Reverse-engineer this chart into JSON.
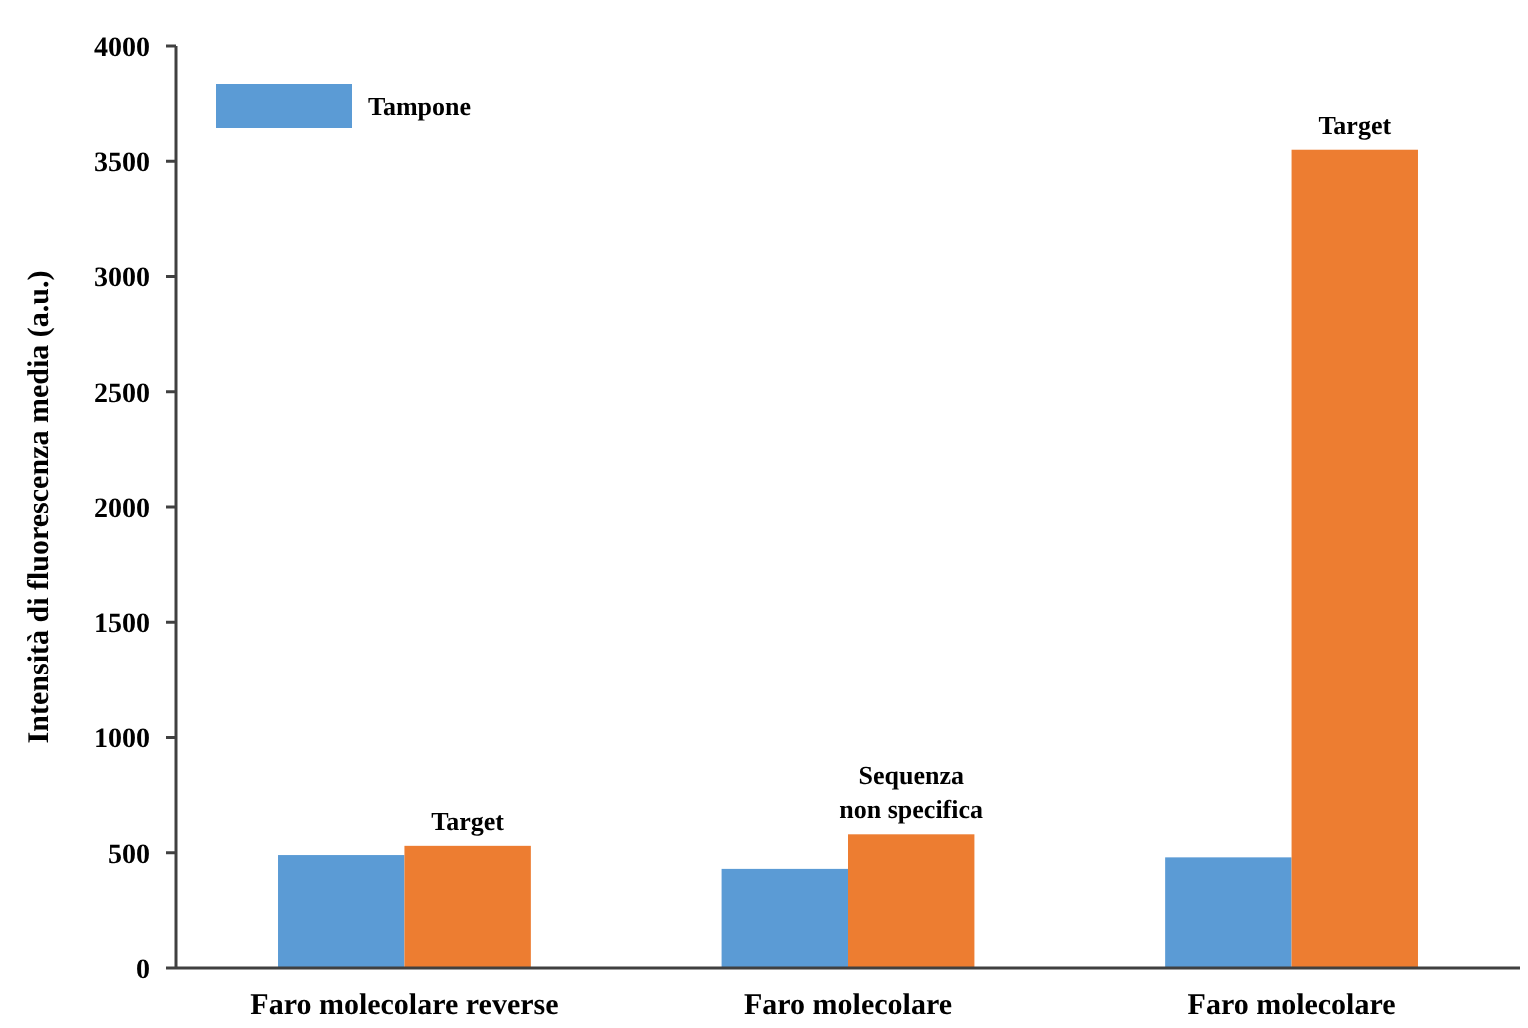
{
  "chart_data": {
    "type": "bar",
    "ylabel": "Intensità di fluorescenza media (a.u.)",
    "categories": [
      "Faro molecolare reverse",
      "Faro molecolare",
      "Faro molecolare"
    ],
    "series": [
      {
        "name": "Tampone",
        "color": "#5b9bd5",
        "values": [
          490,
          430,
          480
        ]
      },
      {
        "color": "#ed7d31",
        "values": [
          530,
          580,
          3550
        ],
        "value_labels": [
          "Target",
          "Sequenza\nnon specifica",
          "Target"
        ]
      }
    ],
    "ylim": [
      0,
      4000
    ],
    "yticks": [
      0,
      500,
      1000,
      1500,
      2000,
      2500,
      3000,
      3500,
      4000
    ],
    "grid": false,
    "legend": "top left"
  }
}
